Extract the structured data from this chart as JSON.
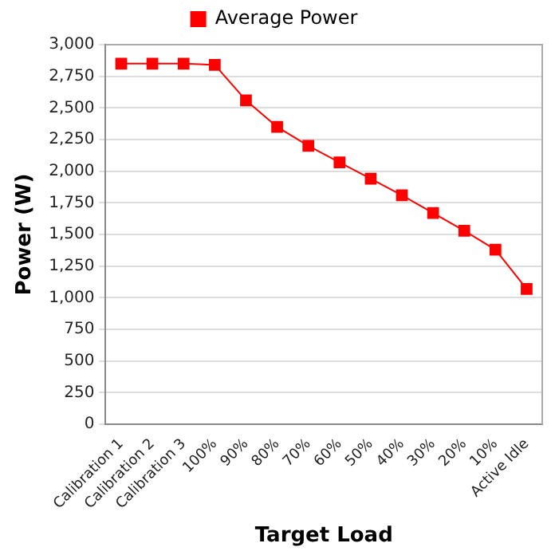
{
  "chart_data": {
    "type": "line",
    "xlabel": "Target Load",
    "ylabel": "Power (W)",
    "categories": [
      "Calibration 1",
      "Calibration 2",
      "Calibration 3",
      "100%",
      "90%",
      "80%",
      "70%",
      "60%",
      "50%",
      "40%",
      "30%",
      "20%",
      "10%",
      "Active Idle"
    ],
    "series": [
      {
        "name": "Average Power",
        "color": "#ff0000",
        "values": [
          2850,
          2850,
          2850,
          2840,
          2560,
          2350,
          2200,
          2070,
          1940,
          1810,
          1670,
          1530,
          1380,
          1070
        ]
      }
    ],
    "ylim": [
      0,
      3000
    ],
    "yticks": [
      0,
      250,
      500,
      750,
      {
        "value": 1000,
        "label": "1,000"
      },
      {
        "value": 1250,
        "label": "1,250"
      },
      {
        "value": 1500,
        "label": "1,500"
      },
      {
        "value": 1750,
        "label": "1,750"
      },
      {
        "value": 2000,
        "label": "2,000"
      },
      {
        "value": 2250,
        "label": "2,250"
      },
      {
        "value": 2500,
        "label": "2,500"
      },
      {
        "value": 2750,
        "label": "2,750"
      },
      {
        "value": 3000,
        "label": "3,000"
      }
    ],
    "grid": "y",
    "legend": "top",
    "marker": "square",
    "line_style": "solid"
  }
}
